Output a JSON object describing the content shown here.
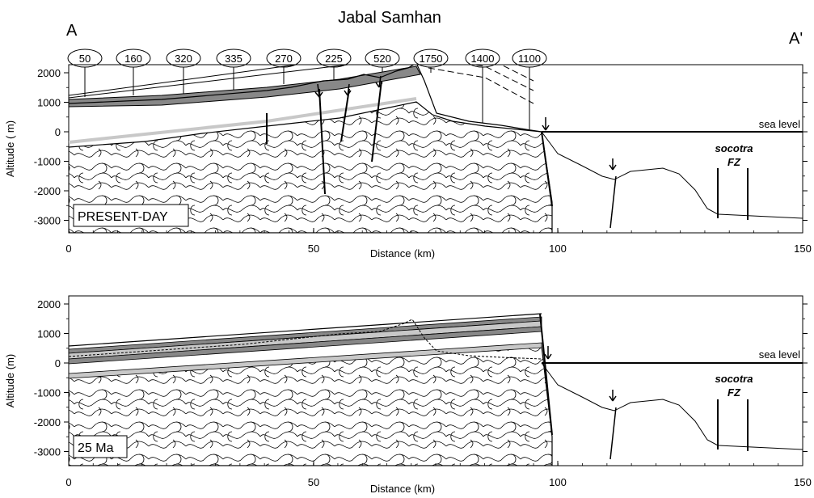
{
  "figure": {
    "title": "Jabal Samhan",
    "section_start": "A",
    "section_end": "A'",
    "thickness_labels": [
      "50",
      "160",
      "320",
      "335",
      "270",
      "225",
      "520",
      "1750",
      "1400",
      "1100"
    ]
  },
  "panels": [
    {
      "id": "present",
      "label": "PRESENT-DAY",
      "ylabel": "Altitude ( m)",
      "xlabel": "Distance (km)",
      "sea_level_label": "sea level",
      "fz_label_1": "socotra",
      "fz_label_2": "FZ",
      "x_ticks": [
        "0",
        "50",
        "100",
        "150"
      ],
      "y_ticks": [
        "2000",
        "1000",
        "0",
        "-1000",
        "-2000",
        "-3000"
      ]
    },
    {
      "id": "ma25",
      "label": "25 Ma",
      "ylabel": "Altitude (m)",
      "xlabel": "Distance (km)",
      "sea_level_label": "sea level",
      "fz_label_1": "socotra",
      "fz_label_2": "FZ",
      "x_ticks": [
        "0",
        "50",
        "100",
        "150"
      ],
      "y_ticks": [
        "2000",
        "1000",
        "0",
        "-1000",
        "-2000",
        "-3000"
      ]
    }
  ],
  "colors": {
    "line": "#000000",
    "grey_layer": "#888888",
    "light_layer": "#c8c8c8"
  }
}
